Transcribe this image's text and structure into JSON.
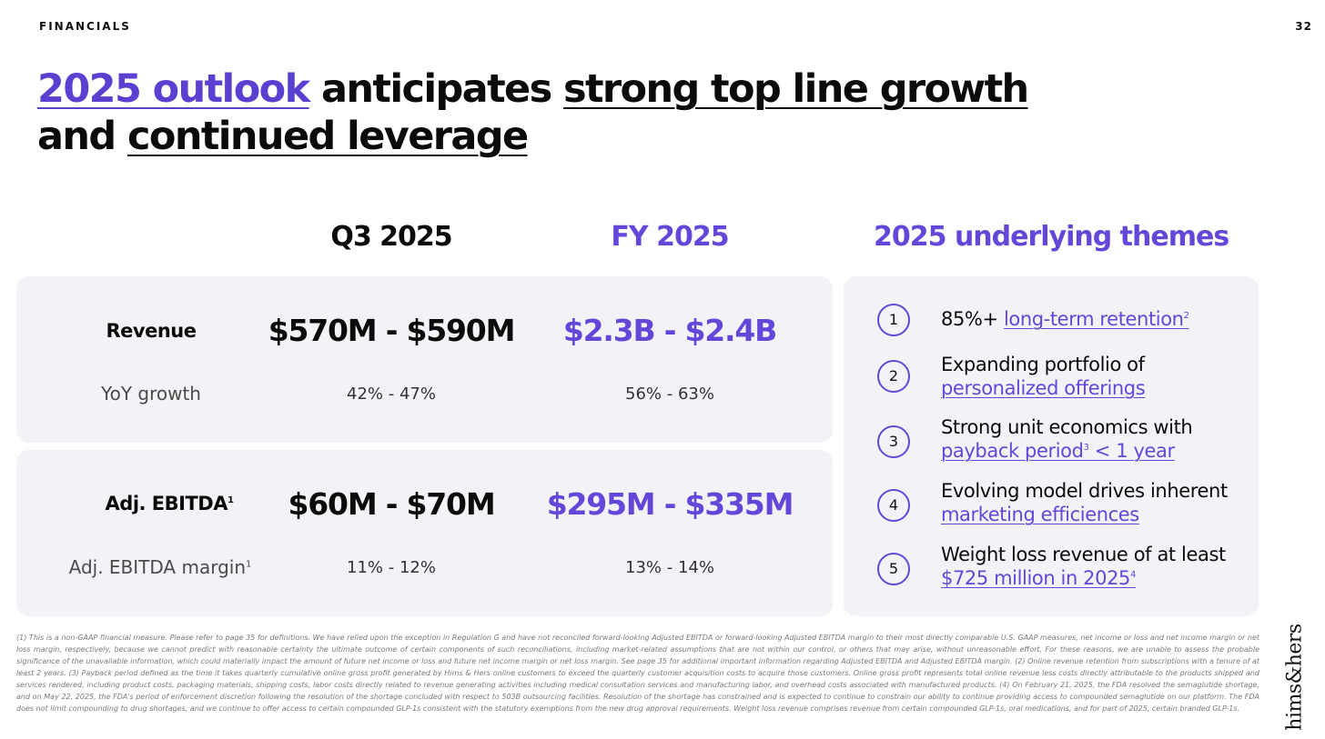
{
  "header": {
    "section": "FINANCIALS",
    "page_number": "32"
  },
  "headline": {
    "part1": "2025 outlook",
    "part2": " anticipates ",
    "part3": "strong top line growth",
    "part4": "and ",
    "part5": "continued leverage"
  },
  "columns": {
    "q3": "Q3 2025",
    "fy": "FY 2025",
    "themes": "2025 underlying themes"
  },
  "revenue": {
    "label": "Revenue",
    "q3_value": "$570M - $590M",
    "fy_value": "$2.3B - $2.4B",
    "growth_label": "YoY growth",
    "q3_growth": "42% - 47%",
    "fy_growth": "56% - 63%"
  },
  "ebitda": {
    "label": "Adj. EBITDA",
    "label_sup": "1",
    "q3_value": "$60M - $70M",
    "fy_value": "$295M - $335M",
    "margin_label": "Adj. EBITDA margin",
    "margin_sup": "1",
    "q3_margin": "11% - 12%",
    "fy_margin": "13% - 14%"
  },
  "themes": [
    {
      "num": "1",
      "line1_prefix": "85%+ ",
      "line1_link": "long-term retention",
      "line1_sup": "2"
    },
    {
      "num": "2",
      "line1": "Expanding portfolio of",
      "line2_link": "personalized offerings"
    },
    {
      "num": "3",
      "line1": "Strong unit economics with",
      "line2_link": "payback period",
      "line2_sup": "3",
      "line2_link_tail": " < 1 year"
    },
    {
      "num": "4",
      "line1": "Evolving model drives inherent",
      "line2_link": "marketing efficiences"
    },
    {
      "num": "5",
      "line1": "Weight loss revenue of at least",
      "line2_link": "$725 million in 2025",
      "line2_sup": "4"
    }
  ],
  "footnote": "(1) This is a non-GAAP financial measure. Please refer to page 35 for definitions. We have relied upon the exception in Regulation G and have not reconciled forward-looking Adjusted EBITDA or forward-looking Adjusted EBITDA margin to their most directly comparable U.S. GAAP measures, net income or loss and net income margin or net loss margin, respectively, because we cannot predict with reasonable certainty the ultimate outcome of certain components of such reconciliations, including market-related assumptions that are not within our control, or others that may arise, without unreasonable effort. For these reasons, we are unable to assess the probable significance of the unavailable information, which could materially impact the amount of future net income or loss and future net income margin or net loss margin. See page 35 for additional important information regarding Adjusted EBITDA and Adjusted EBITDA margin. (2) Online revenue retention from subscriptions with a tenure of at least 2 years. (3) Payback period defined as the time it takes quarterly cumulative online gross profit generated by Hims & Hers online customers to exceed the quarterly customer acquisition costs to acquire those customers. Online gross profit represents total online revenue less costs directly attributable to the products shipped and services rendered, including product costs, packaging materials, shipping costs, labor costs directly related to revenue generating activities including medical consultation services and manufacturing labor, and overhead costs associated with manufactured products. (4) On February 21, 2025, the FDA resolved the semaglutide shortage, and on May 22, 2025, the FDA's period of enforcement discretion following the resolution of the shortage concluded with respect to 503B outsourcing facilities. Resolution of the shortage has constrained and is expected to continue to constrain our ability to continue providing access to compounded semaglutide on our platform. The FDA does not limit compounding to drug shortages, and we continue to offer access to certain compounded GLP-1s consistent with the statutory exemptions from the new drug approval requirements. Weight loss revenue comprises revenue from certain compounded GLP-1s, oral medications, and for part of 2025, certain branded GLP-1s.",
  "brand": "hims&hers",
  "colors": {
    "accent": "#6446d8",
    "card_bg": "#f3f3f7"
  }
}
